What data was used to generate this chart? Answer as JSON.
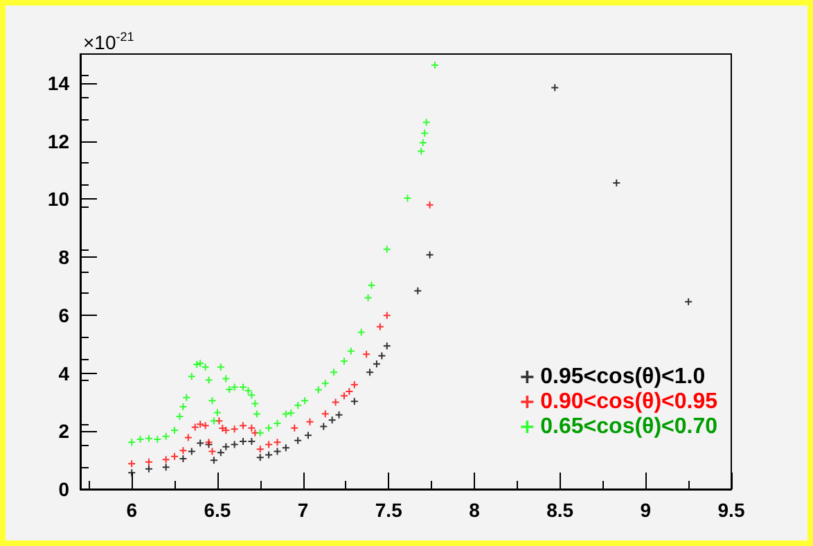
{
  "chart_data": {
    "type": "scatter",
    "marker": "cross",
    "grid": false,
    "legend": "right",
    "annotations": [
      "×10$^{-21}$"
    ],
    "xlim": [
      5.7,
      9.5
    ],
    "xticks": [
      6,
      6.5,
      7,
      7.5,
      8,
      8.5,
      9,
      9.5
    ],
    "ylim": [
      0,
      15
    ],
    "yticks": [
      0,
      2,
      4,
      6,
      8,
      10,
      12,
      14
    ],
    "series": [
      {
        "name": "0.95<cos(θ)<1.0",
        "color": "#000000",
        "x": [
          6.0,
          6.1,
          6.2,
          6.3,
          6.35,
          6.4,
          6.45,
          6.47,
          6.48,
          6.52,
          6.55,
          6.6,
          6.65,
          6.7,
          6.75,
          6.8,
          6.85,
          6.9,
          6.97,
          7.03,
          7.12,
          7.17,
          7.21,
          7.3,
          7.39,
          7.43,
          7.46,
          7.49,
          7.67,
          7.74,
          8.47,
          8.83,
          9.25
        ],
        "values": [
          0.57,
          0.7,
          0.76,
          1.05,
          1.3,
          1.59,
          1.54,
          null,
          1.0,
          1.26,
          1.46,
          1.54,
          1.65,
          1.65,
          1.09,
          1.18,
          1.3,
          1.43,
          1.68,
          1.86,
          2.16,
          2.38,
          2.56,
          3.03,
          4.03,
          4.32,
          4.6,
          4.94,
          6.84,
          8.08,
          13.84,
          10.56,
          6.46
        ]
      },
      {
        "name": "0.90<cos(θ)<0.95",
        "color": "#ff0000",
        "x": [
          6.0,
          6.1,
          6.2,
          6.25,
          6.3,
          6.33,
          6.37,
          6.4,
          6.43,
          6.45,
          6.47,
          6.51,
          6.53,
          6.55,
          6.6,
          6.65,
          6.7,
          6.72,
          6.75,
          6.8,
          6.85,
          6.95,
          7.04,
          7.13,
          7.19,
          7.24,
          7.27,
          7.3,
          7.37,
          7.45,
          7.49,
          7.74
        ],
        "values": [
          0.88,
          0.94,
          1.02,
          1.13,
          1.33,
          1.78,
          2.14,
          2.24,
          2.19,
          1.62,
          1.3,
          2.35,
          2.1,
          2.03,
          2.07,
          2.19,
          2.11,
          1.94,
          1.38,
          1.54,
          1.62,
          2.11,
          2.32,
          2.6,
          3.0,
          3.22,
          3.37,
          3.6,
          4.65,
          5.6,
          5.99,
          9.8
        ]
      },
      {
        "name": "0.65<cos(θ)<0.70",
        "color": "#00ff00",
        "x": [
          6.0,
          6.05,
          6.1,
          6.15,
          6.2,
          6.25,
          6.28,
          6.3,
          6.32,
          6.35,
          6.38,
          6.4,
          6.43,
          6.45,
          6.47,
          6.48,
          6.5,
          6.52,
          6.55,
          6.57,
          6.6,
          6.65,
          6.68,
          6.7,
          6.72,
          6.73,
          6.75,
          6.8,
          6.85,
          6.9,
          6.93,
          6.97,
          7.01,
          7.09,
          7.13,
          7.18,
          7.24,
          7.28,
          7.34,
          7.38,
          7.4,
          7.49,
          7.61,
          7.69,
          7.7,
          7.71,
          7.72,
          7.77
        ],
        "values": [
          1.62,
          1.72,
          1.75,
          1.72,
          1.82,
          2.03,
          2.51,
          2.84,
          3.16,
          3.89,
          4.3,
          4.34,
          4.21,
          3.76,
          3.05,
          2.35,
          2.64,
          4.21,
          3.81,
          3.44,
          3.52,
          3.52,
          3.4,
          3.24,
          2.95,
          2.59,
          1.94,
          2.11,
          2.27,
          2.59,
          2.63,
          2.89,
          3.05,
          3.43,
          3.65,
          4.03,
          4.41,
          4.76,
          5.41,
          6.6,
          7.03,
          8.27,
          10.03,
          11.65,
          11.94,
          12.27,
          12.65,
          14.62
        ]
      }
    ]
  }
}
